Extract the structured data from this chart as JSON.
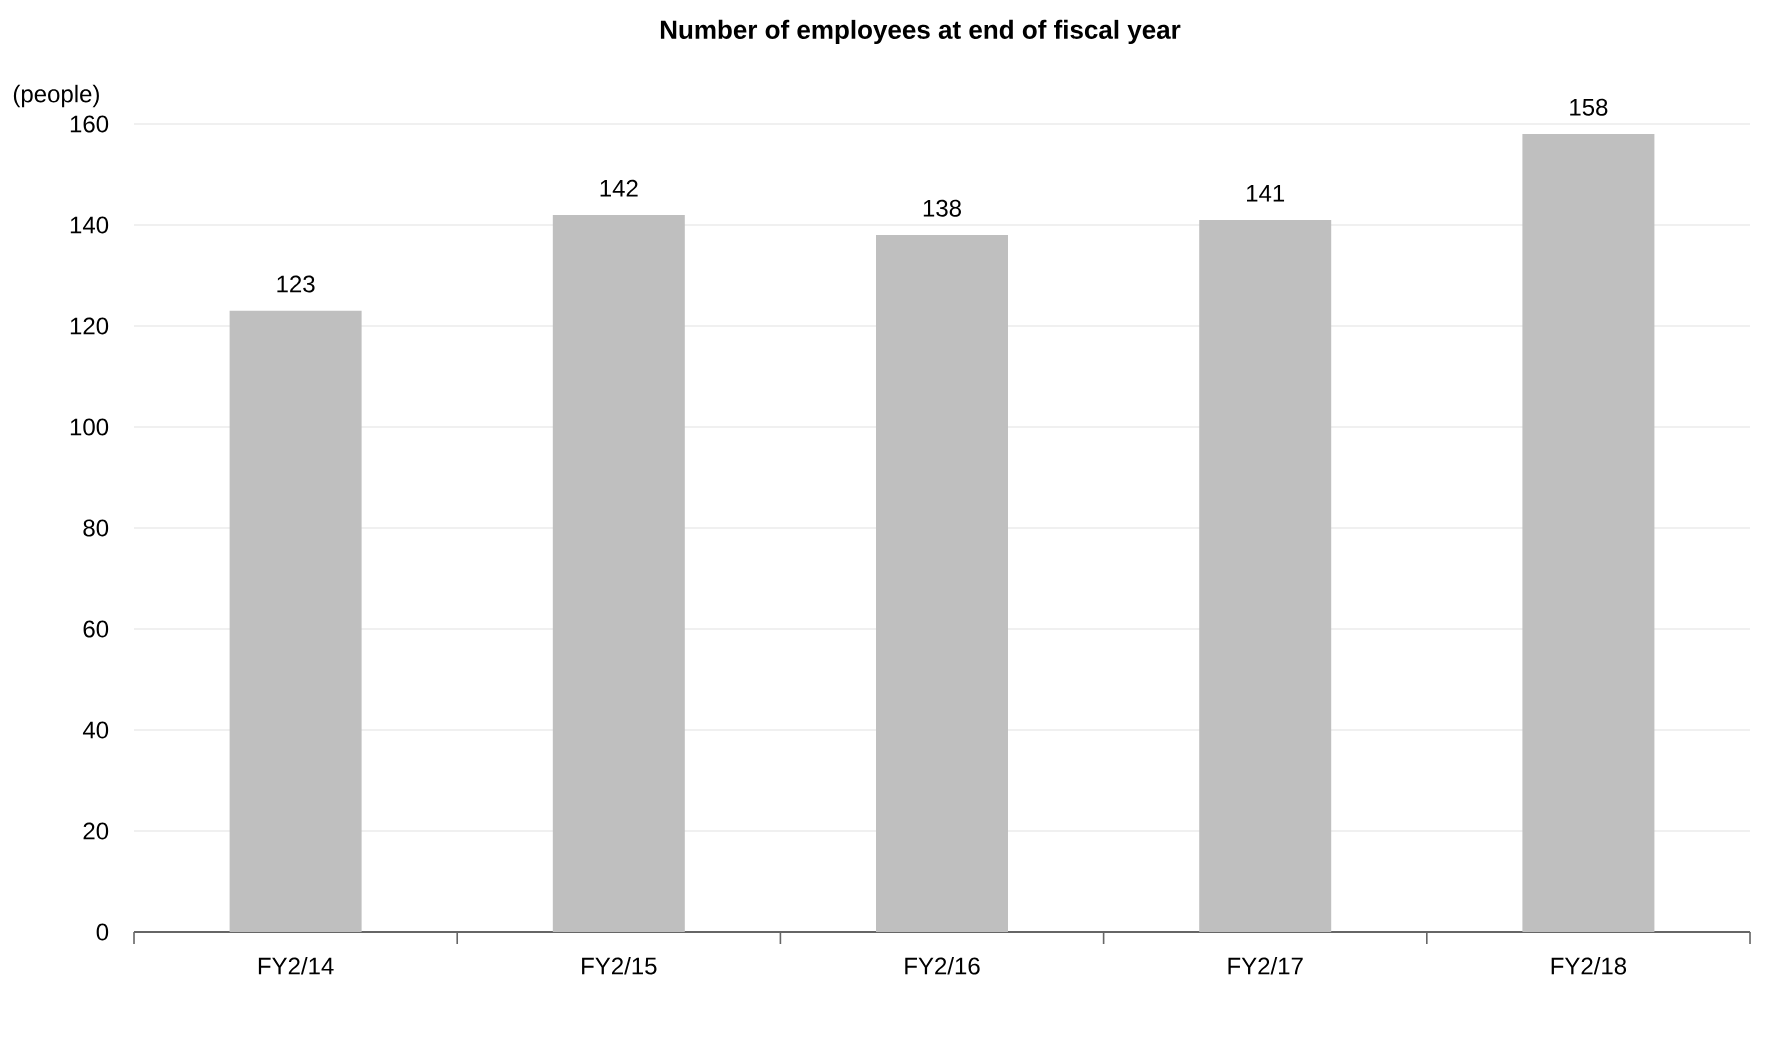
{
  "chart_data": {
    "type": "bar",
    "title": "Number of employees at end of fiscal year",
    "ylabel": "(people)",
    "categories": [
      "FY2/14",
      "FY2/15",
      "FY2/16",
      "FY2/17",
      "FY2/18"
    ],
    "values": [
      123,
      142,
      138,
      141,
      158
    ],
    "color": "#bfbfbf",
    "ylim": [
      0,
      160
    ],
    "yticks": [
      0,
      20,
      40,
      60,
      80,
      100,
      120,
      140,
      160
    ],
    "grid": "y",
    "data_labels": true
  }
}
